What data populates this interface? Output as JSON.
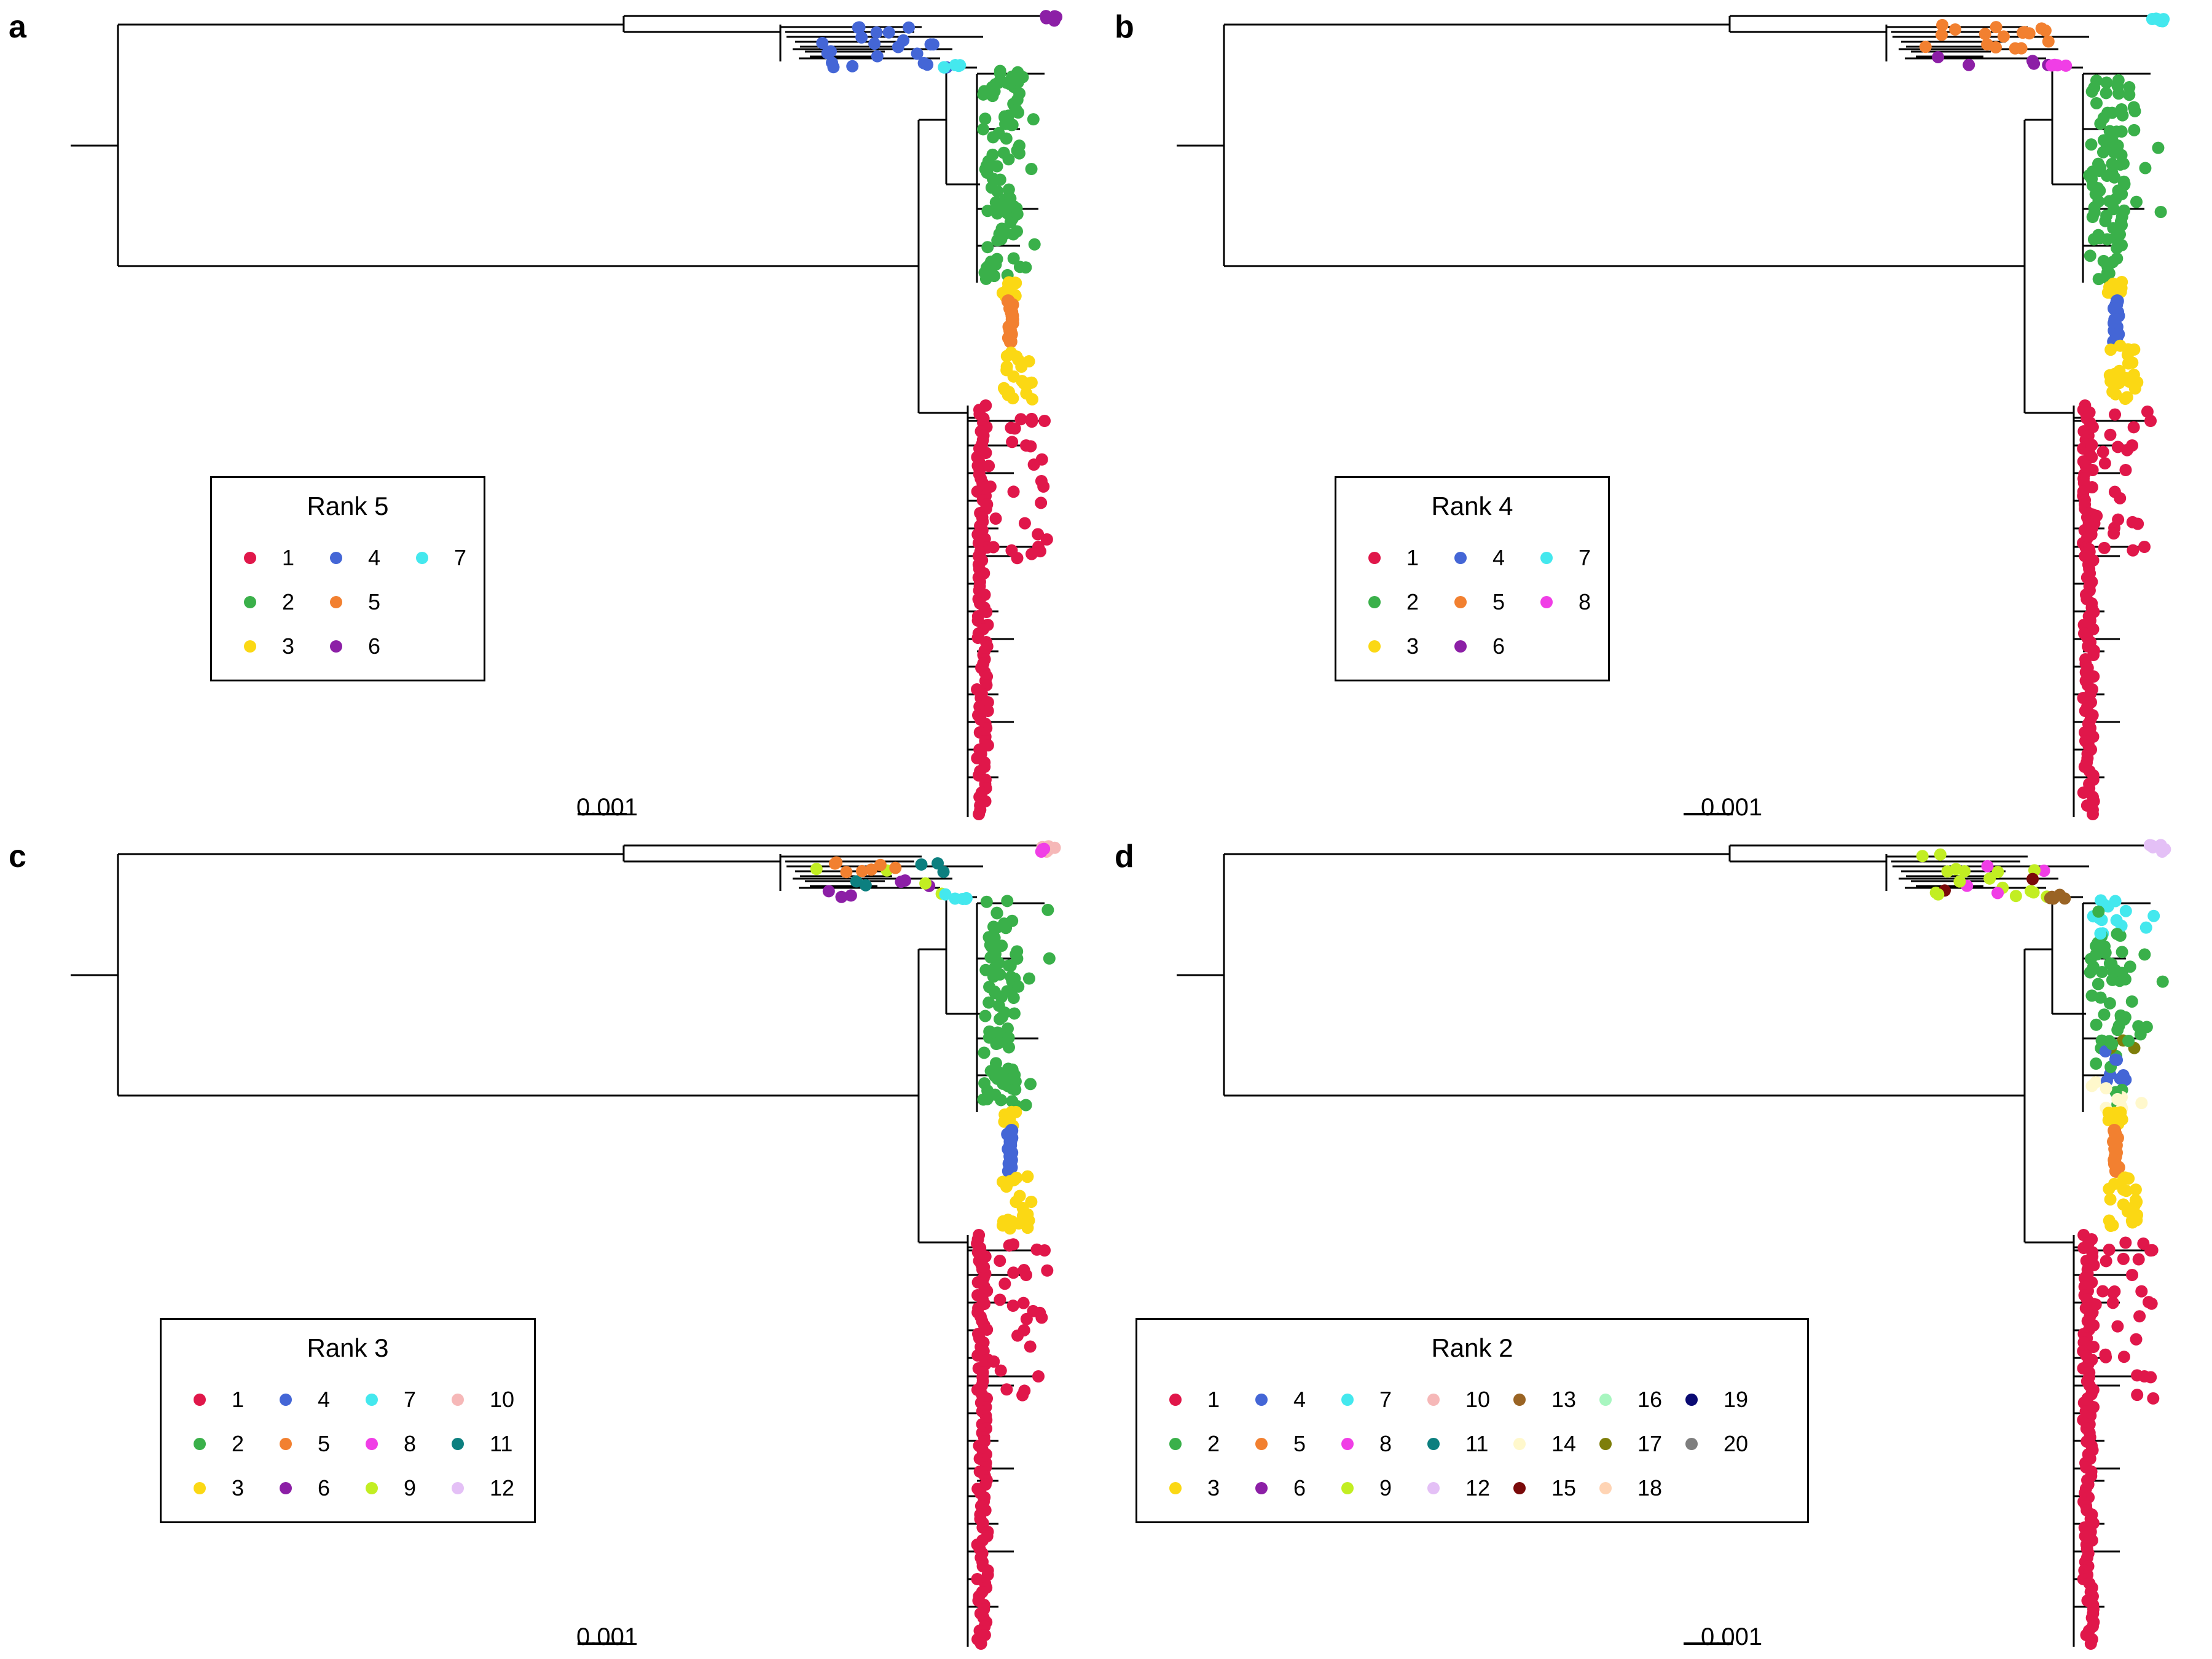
{
  "colors": {
    "1": "#e0174a",
    "2": "#3ab04a",
    "3": "#fbd814",
    "4": "#4466d6",
    "5": "#f28030",
    "6": "#8c1fa6",
    "7": "#44e8ee",
    "8": "#f03ee6",
    "9": "#c2ee22",
    "10": "#f6b8b8",
    "11": "#0c7f7f",
    "12": "#e4c0f6",
    "13": "#9a6424",
    "14": "#fff8cc",
    "15": "#7a0a0a",
    "16": "#a8f6c0",
    "17": "#7e7e0a",
    "18": "#ffd4b4",
    "19": "#0a0a72",
    "20": "#7e7e7e"
  },
  "scale_label": "0.001",
  "panels": [
    {
      "letter": "a",
      "legend": {
        "title": "Rank 5",
        "columns": 3,
        "items": [
          "1",
          "2",
          "3",
          "4",
          "5",
          "6",
          "7"
        ]
      },
      "clades": [
        {
          "cluster": "6",
          "region": "top"
        },
        {
          "cluster": "4",
          "region": "upper"
        },
        {
          "cluster": "7",
          "region": "mid"
        },
        {
          "cluster": "2",
          "region": "green"
        },
        {
          "cluster": "3",
          "region": "yellow-top"
        },
        {
          "cluster": "5",
          "region": "stripe"
        },
        {
          "cluster": "3",
          "region": "yellow-bottom"
        },
        {
          "cluster": "1",
          "region": "red"
        }
      ]
    },
    {
      "letter": "b",
      "legend": {
        "title": "Rank 4",
        "columns": 3,
        "items": [
          "1",
          "2",
          "3",
          "4",
          "5",
          "6",
          "7",
          "8"
        ]
      },
      "clades": [
        {
          "cluster": "7",
          "region": "top"
        },
        {
          "cluster": "5",
          "region": "upper"
        },
        {
          "cluster": "6",
          "region": "upper-lower"
        },
        {
          "cluster": "8",
          "region": "mid"
        },
        {
          "cluster": "2",
          "region": "green"
        },
        {
          "cluster": "3",
          "region": "yellow-top"
        },
        {
          "cluster": "4",
          "region": "stripe"
        },
        {
          "cluster": "3",
          "region": "yellow-bottom"
        },
        {
          "cluster": "1",
          "region": "red"
        }
      ]
    },
    {
      "letter": "c",
      "legend": {
        "title": "Rank 3",
        "columns": 4,
        "items": [
          "1",
          "2",
          "3",
          "4",
          "5",
          "6",
          "7",
          "8",
          "9",
          "10",
          "11",
          "12"
        ]
      },
      "clades": [
        {
          "cluster": "10",
          "region": "top"
        },
        {
          "cluster": "8",
          "region": "top-mix"
        },
        {
          "cluster": "5",
          "region": "upper"
        },
        {
          "cluster": "6",
          "region": "upper-lower"
        },
        {
          "cluster": "9",
          "region": "upper-mix"
        },
        {
          "cluster": "11",
          "region": "upper-mix2"
        },
        {
          "cluster": "7",
          "region": "mid"
        },
        {
          "cluster": "2",
          "region": "green"
        },
        {
          "cluster": "3",
          "region": "yellow-top"
        },
        {
          "cluster": "4",
          "region": "stripe"
        },
        {
          "cluster": "3",
          "region": "yellow-bottom"
        },
        {
          "cluster": "1",
          "region": "red"
        }
      ]
    },
    {
      "letter": "d",
      "legend": {
        "title": "Rank 2",
        "columns": 7,
        "items": [
          "1",
          "2",
          "3",
          "4",
          "5",
          "6",
          "7",
          "8",
          "9",
          "10",
          "11",
          "12",
          "13",
          "14",
          "15",
          "16",
          "17",
          "18",
          "19",
          "20"
        ]
      },
      "clades": [
        {
          "cluster": "12",
          "region": "top"
        },
        {
          "cluster": "9",
          "region": "upper"
        },
        {
          "cluster": "8",
          "region": "upper-mix"
        },
        {
          "cluster": "15",
          "region": "upper-mix2"
        },
        {
          "cluster": "13",
          "region": "mid"
        },
        {
          "cluster": "7",
          "region": "cyan-block"
        },
        {
          "cluster": "2",
          "region": "green"
        },
        {
          "cluster": "17",
          "region": "green-mix"
        },
        {
          "cluster": "4",
          "region": "blue-block"
        },
        {
          "cluster": "14",
          "region": "cream-block"
        },
        {
          "cluster": "3",
          "region": "yellow-top"
        },
        {
          "cluster": "5",
          "region": "stripe"
        },
        {
          "cluster": "3",
          "region": "yellow-bottom"
        },
        {
          "cluster": "1",
          "region": "red"
        }
      ]
    }
  ]
}
